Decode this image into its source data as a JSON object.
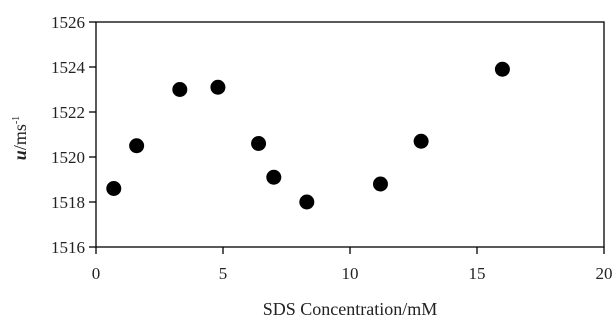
{
  "chart_data": {
    "type": "scatter",
    "xlabel": "SDS Concentration/mM",
    "ylabel": {
      "symbol": "u",
      "unit": "/ms",
      "exponent": "-1"
    },
    "xlim": [
      0,
      20
    ],
    "ylim": [
      1516,
      1526
    ],
    "x_ticks": [
      0,
      5,
      10,
      15,
      20
    ],
    "y_ticks": [
      1516,
      1518,
      1520,
      1522,
      1524,
      1526
    ],
    "grid": false,
    "legend": "none",
    "marker_color": "#000000",
    "frame_color": "#000000",
    "points": [
      {
        "x": 0.7,
        "y": 1518.6
      },
      {
        "x": 1.6,
        "y": 1520.5
      },
      {
        "x": 3.3,
        "y": 1523.0
      },
      {
        "x": 4.8,
        "y": 1523.1
      },
      {
        "x": 6.4,
        "y": 1520.6
      },
      {
        "x": 7.0,
        "y": 1519.1
      },
      {
        "x": 8.3,
        "y": 1518.0
      },
      {
        "x": 11.2,
        "y": 1518.8
      },
      {
        "x": 12.8,
        "y": 1520.7
      },
      {
        "x": 16.0,
        "y": 1523.9
      }
    ]
  }
}
